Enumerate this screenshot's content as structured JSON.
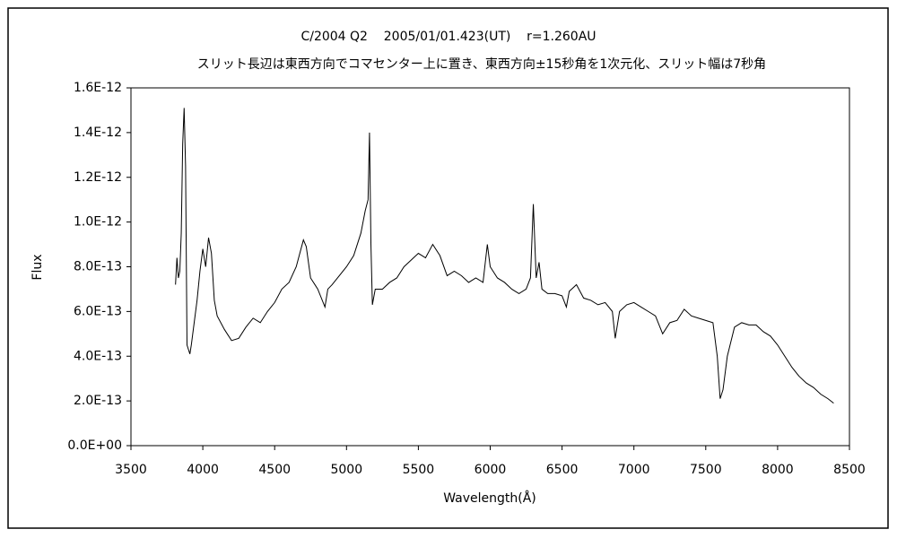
{
  "chart_data": {
    "type": "line",
    "title": "C/2004 Q2    2005/01/01.423(UT)    r=1.260AU",
    "subtitle": "スリット長辺は東西方向でコマセンター上に置き、東西方向±15秒角を1次元化、スリット幅は7秒角",
    "x_label": "Wavelength(Å)",
    "y_label": "Flux",
    "color": "#000000",
    "grid": false,
    "xlim": [
      3500,
      8500
    ],
    "xticks": [
      3500,
      4000,
      4500,
      5000,
      5500,
      6000,
      6500,
      7000,
      7500,
      8000,
      8500
    ],
    "ylim": [
      0,
      1.6e-12
    ],
    "yticks": [
      {
        "value": 0,
        "label": "0.0E+00"
      },
      {
        "value": 2e-13,
        "label": "2.0E-13"
      },
      {
        "value": 4e-13,
        "label": "4.0E-13"
      },
      {
        "value": 6e-13,
        "label": "6.0E-13"
      },
      {
        "value": 8e-13,
        "label": "8.0E-13"
      },
      {
        "value": 1e-12,
        "label": "1.0E-12"
      },
      {
        "value": 1.2e-12,
        "label": "1.2E-12"
      },
      {
        "value": 1.4e-12,
        "label": "1.4E-12"
      },
      {
        "value": 1.6e-12,
        "label": "1.6E-12"
      }
    ],
    "x": [
      3810,
      3820,
      3830,
      3840,
      3850,
      3860,
      3870,
      3880,
      3890,
      3900,
      3910,
      3920,
      3940,
      3960,
      3980,
      4000,
      4020,
      4040,
      4060,
      4080,
      4100,
      4150,
      4200,
      4250,
      4300,
      4350,
      4400,
      4450,
      4500,
      4550,
      4600,
      4650,
      4700,
      4720,
      4750,
      4780,
      4800,
      4850,
      4870,
      4900,
      4950,
      5000,
      5050,
      5100,
      5130,
      5150,
      5160,
      5170,
      5180,
      5200,
      5250,
      5300,
      5350,
      5400,
      5450,
      5500,
      5550,
      5600,
      5650,
      5700,
      5750,
      5800,
      5850,
      5900,
      5950,
      5980,
      6000,
      6050,
      6100,
      6150,
      6200,
      6250,
      6280,
      6300,
      6320,
      6340,
      6360,
      6400,
      6450,
      6500,
      6530,
      6550,
      6600,
      6650,
      6700,
      6750,
      6800,
      6850,
      6870,
      6900,
      6950,
      7000,
      7050,
      7100,
      7150,
      7200,
      7250,
      7300,
      7350,
      7400,
      7450,
      7500,
      7550,
      7580,
      7600,
      7620,
      7650,
      7700,
      7750,
      7800,
      7850,
      7900,
      7950,
      8000,
      8050,
      8100,
      8150,
      8200,
      8250,
      8300,
      8350,
      8390
    ],
    "values": [
      7.2e-13,
      8.4e-13,
      7.5e-13,
      7.8e-13,
      9.5e-13,
      1.35e-12,
      1.51e-12,
      1.25e-12,
      4.5e-13,
      4.3e-13,
      4.1e-13,
      4.5e-13,
      5.5e-13,
      6.5e-13,
      7.8e-13,
      8.8e-13,
      8e-13,
      9.3e-13,
      8.6e-13,
      6.5e-13,
      5.8e-13,
      5.2e-13,
      4.7e-13,
      4.8e-13,
      5.3e-13,
      5.7e-13,
      5.5e-13,
      6e-13,
      6.4e-13,
      7e-13,
      7.3e-13,
      8e-13,
      9.2e-13,
      8.9e-13,
      7.5e-13,
      7.2e-13,
      7e-13,
      6.2e-13,
      7e-13,
      7.2e-13,
      7.6e-13,
      8e-13,
      8.5e-13,
      9.5e-13,
      1.05e-12,
      1.1e-12,
      1.4e-12,
      9e-13,
      6.3e-13,
      7e-13,
      7e-13,
      7.3e-13,
      7.5e-13,
      8e-13,
      8.3e-13,
      8.6e-13,
      8.4e-13,
      9e-13,
      8.5e-13,
      7.6e-13,
      7.8e-13,
      7.6e-13,
      7.3e-13,
      7.5e-13,
      7.3e-13,
      9e-13,
      8e-13,
      7.5e-13,
      7.3e-13,
      7e-13,
      6.8e-13,
      7e-13,
      7.5e-13,
      1.08e-12,
      7.5e-13,
      8.2e-13,
      7e-13,
      6.8e-13,
      6.8e-13,
      6.7e-13,
      6.2e-13,
      6.9e-13,
      7.2e-13,
      6.6e-13,
      6.5e-13,
      6.3e-13,
      6.4e-13,
      6e-13,
      4.8e-13,
      6e-13,
      6.3e-13,
      6.4e-13,
      6.2e-13,
      6e-13,
      5.8e-13,
      5e-13,
      5.5e-13,
      5.6e-13,
      6.1e-13,
      5.8e-13,
      5.7e-13,
      5.6e-13,
      5.5e-13,
      4e-13,
      2.1e-13,
      2.5e-13,
      4e-13,
      5.3e-13,
      5.5e-13,
      5.4e-13,
      5.4e-13,
      5.1e-13,
      4.9e-13,
      4.5e-13,
      4e-13,
      3.5e-13,
      3.1e-13,
      2.8e-13,
      2.6e-13,
      2.3e-13,
      2.1e-13,
      1.9e-13
    ]
  }
}
